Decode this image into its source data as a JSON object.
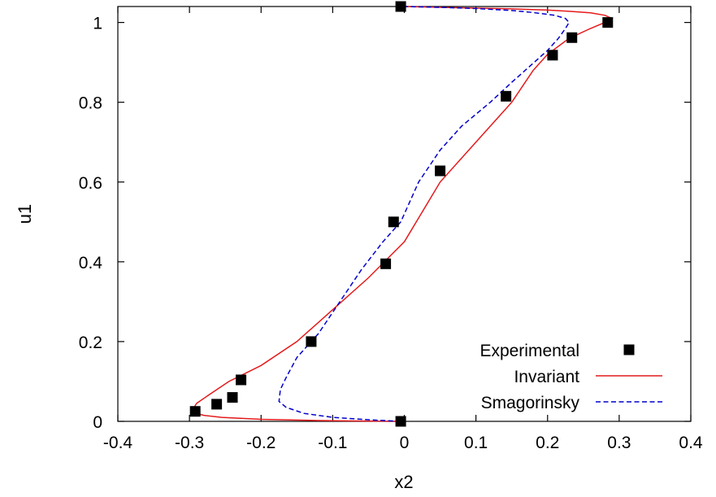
{
  "chart_data": {
    "type": "line",
    "xlabel": "x2",
    "ylabel": "u1",
    "xlim": [
      -0.4,
      0.4
    ],
    "ylim": [
      0,
      1.04
    ],
    "xticks": [
      -0.4,
      -0.3,
      -0.2,
      -0.1,
      0,
      0.1,
      0.2,
      0.3,
      0.4
    ],
    "yticks": [
      0,
      0.2,
      0.4,
      0.6,
      0.8,
      1
    ],
    "xtick_labels": [
      "-0.4",
      "-0.3",
      "-0.2",
      "-0.1",
      "0",
      "0.1",
      "0.2",
      "0.3",
      "0.4"
    ],
    "ytick_labels": [
      "0",
      "0.2",
      "0.4",
      "0.6",
      "0.8",
      "1"
    ],
    "grid": false,
    "legend_position": "bottom-right",
    "series": [
      {
        "name": "Experimental",
        "kind": "scatter",
        "marker": "square",
        "color": "#000000",
        "x": [
          -0.292,
          -0.262,
          -0.24,
          -0.228,
          -0.13,
          -0.026,
          -0.015,
          0.05,
          0.142,
          0.207,
          0.234,
          0.284,
          -0.005,
          -0.005
        ],
        "y": [
          0.025,
          0.043,
          0.06,
          0.104,
          0.2,
          0.395,
          0.5,
          0.628,
          0.815,
          0.918,
          0.962,
          1.0,
          1.04,
          0.0
        ]
      },
      {
        "name": "Invariant",
        "kind": "line",
        "color": "#e41a1c",
        "dash": "solid",
        "x": [
          -0.005,
          -0.07,
          -0.12,
          -0.2,
          -0.255,
          -0.28,
          -0.29,
          -0.295,
          -0.29,
          -0.27,
          -0.245,
          -0.2,
          -0.15,
          -0.1,
          -0.05,
          0.0,
          0.05,
          0.1,
          0.15,
          0.165,
          0.18,
          0.2,
          0.23,
          0.26,
          0.28,
          0.29,
          0.28,
          0.26,
          0.23,
          0.2,
          0.15,
          0.1,
          0.05,
          0.0
        ],
        "y": [
          0.0,
          0.001,
          0.002,
          0.005,
          0.01,
          0.015,
          0.02,
          0.03,
          0.045,
          0.07,
          0.1,
          0.14,
          0.2,
          0.28,
          0.36,
          0.45,
          0.6,
          0.7,
          0.8,
          0.84,
          0.88,
          0.92,
          0.96,
          0.985,
          1.0,
          1.01,
          1.018,
          1.024,
          1.028,
          1.031,
          1.034,
          1.036,
          1.038,
          1.04
        ]
      },
      {
        "name": "Smagorinsky",
        "kind": "line",
        "color": "#0000cc",
        "dash": "dashed",
        "x": [
          -0.005,
          -0.05,
          -0.1,
          -0.14,
          -0.165,
          -0.175,
          -0.173,
          -0.165,
          -0.15,
          -0.12,
          -0.09,
          -0.06,
          -0.03,
          -0.005,
          0.02,
          0.05,
          0.08,
          0.12,
          0.15,
          0.175,
          0.2,
          0.215,
          0.225,
          0.23,
          0.225,
          0.21,
          0.18,
          0.15,
          0.1,
          0.05,
          0.0
        ],
        "y": [
          0.0,
          0.004,
          0.01,
          0.02,
          0.035,
          0.05,
          0.08,
          0.11,
          0.16,
          0.22,
          0.3,
          0.38,
          0.45,
          0.5,
          0.6,
          0.68,
          0.74,
          0.8,
          0.85,
          0.89,
          0.93,
          0.96,
          0.985,
          1.0,
          1.01,
          1.018,
          1.025,
          1.03,
          1.035,
          1.038,
          1.04
        ]
      }
    ]
  }
}
